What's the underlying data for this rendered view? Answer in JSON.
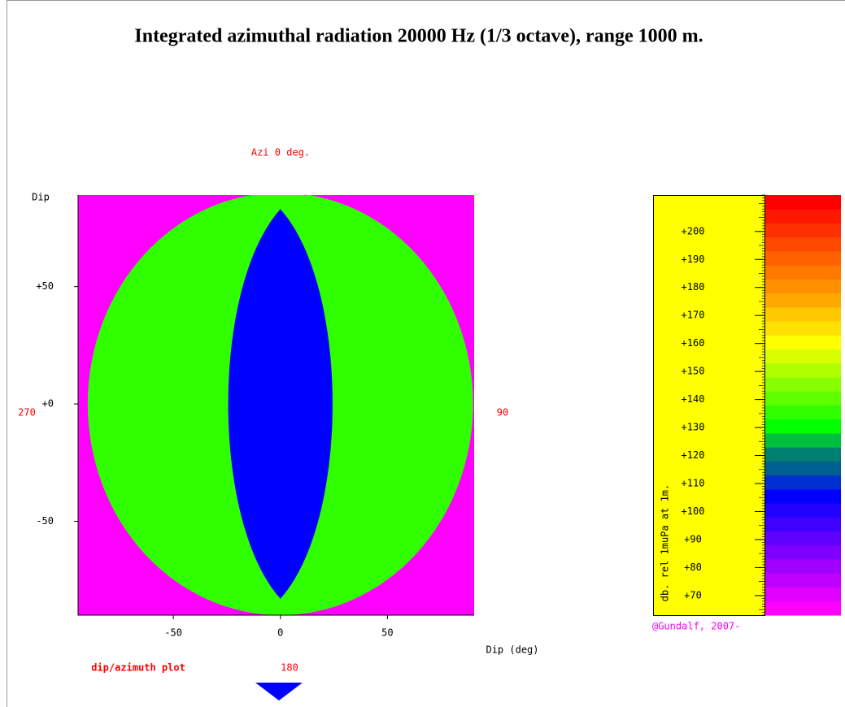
{
  "chart_data": {
    "type": "heatmap",
    "title": "Integrated azimuthal radiation 20000 Hz (1/3 octave), range 1000 m.",
    "top_label": "Azi 0 deg.",
    "left_label": "270",
    "right_label": "90",
    "bottom_label": "180",
    "ylabel": "Dip",
    "xlabel": "Dip (deg)",
    "plot_name": "dip/azimuth plot",
    "xlim": [
      -94.5,
      90.5
    ],
    "ylim": [
      -90,
      89
    ],
    "xticks": [
      -50,
      0,
      50
    ],
    "yticks": [
      {
        "value": 50,
        "label": "+50"
      },
      {
        "value": 0,
        "label": "+0"
      },
      -50
    ],
    "field": {
      "outside": 65,
      "disk": 135,
      "lobe": 106,
      "disk_radius": 90,
      "lobe_halfwidth": 25,
      "lobe_halfheight": 83
    },
    "colorbar": {
      "label": "db. rel 1muPa at 1m.",
      "credit": "@Gundalf, 2007-",
      "clim": [
        63,
        213
      ],
      "band": 5,
      "colors": [
        "#ff00ff",
        "#e000ff",
        "#c000ff",
        "#a000ff",
        "#8000ff",
        "#6000ff",
        "#4000ff",
        "#2000ff",
        "#0000ff",
        "#0030d0",
        "#006090",
        "#008070",
        "#00c040",
        "#00ff00",
        "#30ff00",
        "#60ff00",
        "#88ff00",
        "#b0ff00",
        "#d8ff00",
        "#ffff00",
        "#ffe000",
        "#ffc800",
        "#ffa800",
        "#ff9000",
        "#ff7800",
        "#ff6000",
        "#ff4800",
        "#ff3000",
        "#ff1800",
        "#ff0000"
      ],
      "ticks": [
        {
          "value": 200,
          "label": "+200"
        },
        {
          "value": 190,
          "label": "+190"
        },
        {
          "value": 180,
          "label": "+180"
        },
        {
          "value": 170,
          "label": "+170"
        },
        {
          "value": 160,
          "label": "+160"
        },
        {
          "value": 150,
          "label": "+150"
        },
        {
          "value": 140,
          "label": "+140"
        },
        {
          "value": 130,
          "label": "+130"
        },
        {
          "value": 120,
          "label": "+120"
        },
        {
          "value": 110,
          "label": "+110"
        },
        {
          "value": 100,
          "label": "+100"
        },
        {
          "value": 90,
          "label": "+90"
        },
        {
          "value": 80,
          "label": "+80"
        },
        {
          "value": 70,
          "label": "+70"
        }
      ]
    }
  }
}
